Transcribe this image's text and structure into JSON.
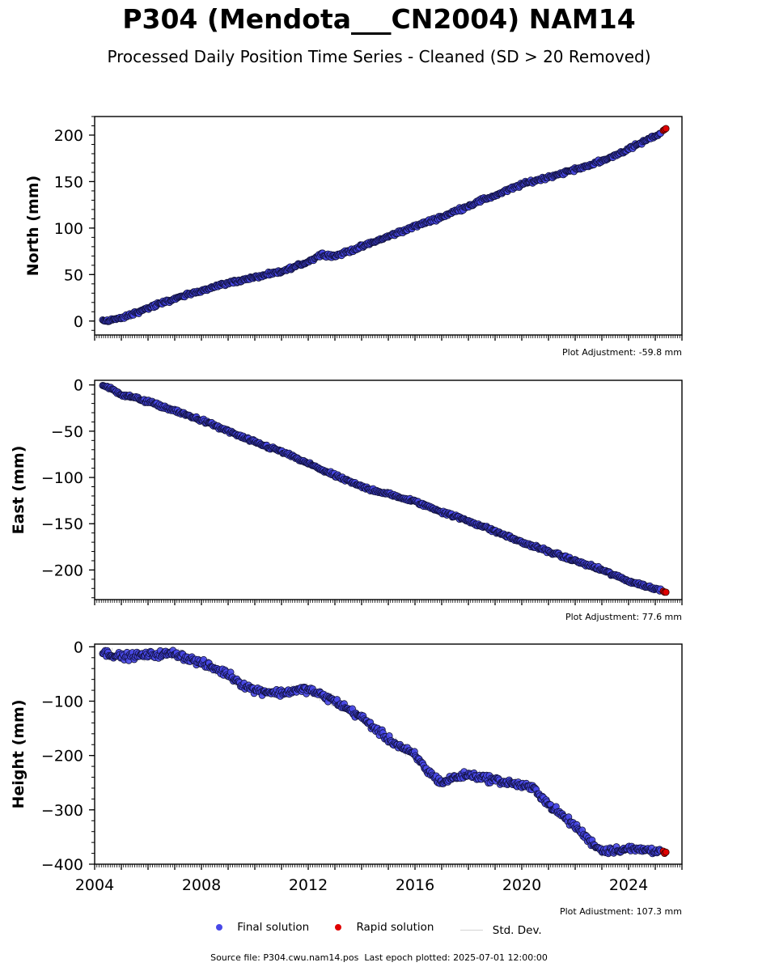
{
  "title": "P304 (Mendota___CN2004) NAM14",
  "subtitle": "Processed Daily Position Time Series - Cleaned (SD > 20 Removed)",
  "legend": {
    "final_label": "Final solution",
    "rapid_label": "Rapid solution",
    "std_label": "Std. Dev."
  },
  "footer": "Source file: P304.cwu.nam14.pos  Last epoch plotted: 2025-07-01 12:00:00",
  "colors": {
    "final": "#4848e8",
    "final_edge": "#10103a",
    "rapid": "#e00000",
    "std": "#d3d3d3"
  },
  "chart_data": [
    {
      "type": "scatter",
      "title": "",
      "ylabel": "North (mm)",
      "xlim": [
        2004,
        2026
      ],
      "ylim": [
        -15,
        220
      ],
      "yticks": [
        0,
        50,
        100,
        150,
        200
      ],
      "ytick_labels": [
        "0",
        "50",
        "100",
        "150",
        "200"
      ],
      "show_xtick_labels": false,
      "adjustment": "Plot Adjustment: -59.8 mm",
      "series": [
        {
          "name": "Final solution",
          "x": [
            2004.3,
            2005.0,
            2006.0,
            2007.0,
            2008.0,
            2009.0,
            2010.0,
            2011.0,
            2012.0,
            2012.5,
            2013.0,
            2014.0,
            2015.0,
            2016.0,
            2017.0,
            2018.0,
            2018.5,
            2019.0,
            2020.0,
            2021.0,
            2022.0,
            2023.0,
            2024.0,
            2025.2
          ],
          "y": [
            0,
            3,
            14,
            24,
            33,
            41,
            47,
            53,
            64,
            72,
            70,
            80,
            91,
            102,
            112,
            124,
            130,
            135,
            147,
            155,
            163,
            172,
            185,
            202
          ]
        },
        {
          "name": "Rapid solution",
          "x": [
            2025.3,
            2025.35,
            2025.4
          ],
          "y": [
            205,
            206,
            207
          ]
        }
      ]
    },
    {
      "type": "scatter",
      "title": "",
      "ylabel": "East (mm)",
      "xlim": [
        2004,
        2026
      ],
      "ylim": [
        -232,
        5
      ],
      "yticks": [
        0,
        -50,
        -100,
        -150,
        -200
      ],
      "ytick_labels": [
        "0",
        "−50",
        "−100",
        "−150",
        "−200"
      ],
      "show_xtick_labels": false,
      "adjustment": "Plot Adjustment: 77.6 mm",
      "series": [
        {
          "name": "Final solution",
          "x": [
            2004.3,
            2005.0,
            2006.0,
            2007.0,
            2008.0,
            2009.0,
            2010.0,
            2011.0,
            2012.0,
            2013.0,
            2014.0,
            2015.0,
            2016.0,
            2017.0,
            2018.0,
            2019.0,
            2020.0,
            2021.0,
            2022.0,
            2023.0,
            2024.0,
            2025.2
          ],
          "y": [
            0,
            -10,
            -18,
            -28,
            -38,
            -50,
            -62,
            -72,
            -85,
            -98,
            -110,
            -118,
            -126,
            -137,
            -147,
            -158,
            -170,
            -180,
            -190,
            -200,
            -212,
            -222
          ]
        },
        {
          "name": "Rapid solution",
          "x": [
            2025.3,
            2025.35,
            2025.4
          ],
          "y": [
            -223,
            -224,
            -224
          ]
        }
      ]
    },
    {
      "type": "scatter",
      "title": "",
      "ylabel": "Height (mm)",
      "xlim": [
        2004,
        2026
      ],
      "ylim": [
        -400,
        5
      ],
      "yticks": [
        0,
        -100,
        -200,
        -300,
        -400
      ],
      "ytick_labels": [
        "0",
        "−100",
        "−200",
        "−300",
        "−400"
      ],
      "xticks": [
        2004,
        2008,
        2012,
        2016,
        2020,
        2024
      ],
      "xtick_labels": [
        "2004",
        "2008",
        "2012",
        "2016",
        "2020",
        "2024"
      ],
      "show_xtick_labels": true,
      "adjustment": "Plot Adjustment: 107.3 mm",
      "series": [
        {
          "name": "Final solution",
          "x": [
            2004.3,
            2005.0,
            2006.0,
            2007.0,
            2008.0,
            2009.0,
            2009.5,
            2010.0,
            2011.0,
            2011.5,
            2012.0,
            2013.0,
            2014.0,
            2015.0,
            2016.0,
            2016.5,
            2017.0,
            2017.5,
            2018.0,
            2019.0,
            2020.0,
            2020.5,
            2021.0,
            2022.0,
            2022.5,
            2023.0,
            2024.0,
            2025.2
          ],
          "y": [
            -10,
            -18,
            -15,
            -12,
            -30,
            -50,
            -68,
            -80,
            -85,
            -80,
            -78,
            -100,
            -130,
            -170,
            -200,
            -230,
            -250,
            -240,
            -235,
            -245,
            -255,
            -262,
            -290,
            -330,
            -355,
            -375,
            -372,
            -375
          ]
        },
        {
          "name": "Rapid solution",
          "x": [
            2025.3,
            2025.35,
            2025.4
          ],
          "y": [
            -376,
            -380,
            -378
          ]
        }
      ]
    }
  ]
}
